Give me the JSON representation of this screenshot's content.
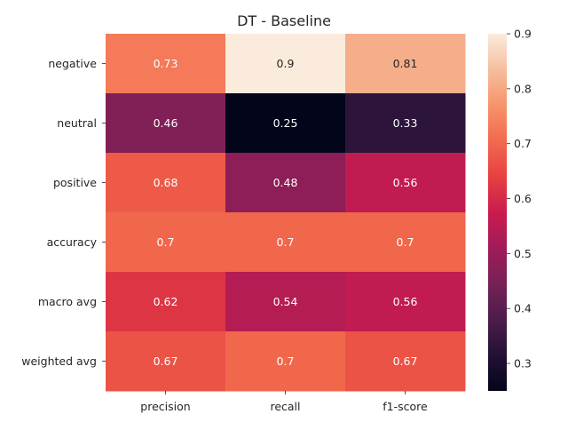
{
  "chart_data": {
    "type": "heatmap",
    "title": "DT - Baseline",
    "x_categories": [
      "precision",
      "recall",
      "f1-score"
    ],
    "y_categories": [
      "negative",
      "neutral",
      "positive",
      "accuracy",
      "macro avg",
      "weighted avg"
    ],
    "values": [
      [
        0.73,
        0.9,
        0.81
      ],
      [
        0.46,
        0.25,
        0.33
      ],
      [
        0.68,
        0.48,
        0.56
      ],
      [
        0.7,
        0.7,
        0.7
      ],
      [
        0.62,
        0.54,
        0.56
      ],
      [
        0.67,
        0.7,
        0.67
      ]
    ],
    "cell_labels": [
      [
        "0.73",
        "0.9",
        "0.81"
      ],
      [
        "0.46",
        "0.25",
        "0.33"
      ],
      [
        "0.68",
        "0.48",
        "0.56"
      ],
      [
        "0.7",
        "0.7",
        "0.7"
      ],
      [
        "0.62",
        "0.54",
        "0.56"
      ],
      [
        "0.67",
        "0.7",
        "0.67"
      ]
    ],
    "colorbar": {
      "vmin": 0.25,
      "vmax": 0.9,
      "ticks": [
        0.3,
        0.4,
        0.5,
        0.6,
        0.7,
        0.8,
        0.9
      ],
      "tick_labels": [
        "0.3",
        "0.4",
        "0.5",
        "0.6",
        "0.7",
        "0.8",
        "0.9"
      ]
    },
    "colormap": "rocket"
  }
}
